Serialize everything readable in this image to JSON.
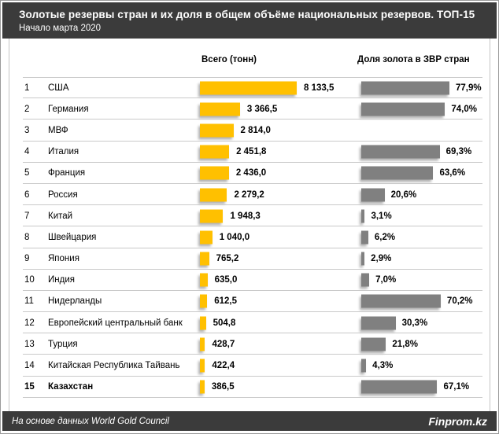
{
  "header": {
    "title": "Золотые резервы стран  и их доля в общем объёме национальных резервов. ТОП-15",
    "subtitle": "Начало  марта  2020"
  },
  "columns": {
    "tonnes": "Всего (тонн)",
    "share": "Доля золота в ЗВР стран"
  },
  "rows": [
    {
      "rank": "1",
      "country": "США",
      "tonnes_label": "8 133,5",
      "tonnes": 8133.5,
      "share_label": "77,9%",
      "share": 77.9,
      "highlight": false
    },
    {
      "rank": "2",
      "country": "Германия",
      "tonnes_label": "3 366,5",
      "tonnes": 3366.5,
      "share_label": "74,0%",
      "share": 74.0,
      "highlight": false
    },
    {
      "rank": "3",
      "country": "МВФ",
      "tonnes_label": "2 814,0",
      "tonnes": 2814.0,
      "share_label": null,
      "share": null,
      "highlight": false
    },
    {
      "rank": "4",
      "country": "Италия",
      "tonnes_label": "2 451,8",
      "tonnes": 2451.8,
      "share_label": "69,3%",
      "share": 69.3,
      "highlight": false
    },
    {
      "rank": "5",
      "country": "Франция",
      "tonnes_label": "2 436,0",
      "tonnes": 2436.0,
      "share_label": "63,6%",
      "share": 63.6,
      "highlight": false
    },
    {
      "rank": "6",
      "country": "Россия",
      "tonnes_label": "2 279,2",
      "tonnes": 2279.2,
      "share_label": "20,6%",
      "share": 20.6,
      "highlight": false
    },
    {
      "rank": "7",
      "country": "Китай",
      "tonnes_label": "1 948,3",
      "tonnes": 1948.3,
      "share_label": "3,1%",
      "share": 3.1,
      "highlight": false
    },
    {
      "rank": "8",
      "country": "Швейцария",
      "tonnes_label": "1 040,0",
      "tonnes": 1040.0,
      "share_label": "6,2%",
      "share": 6.2,
      "highlight": false
    },
    {
      "rank": "9",
      "country": "Япония",
      "tonnes_label": "765,2",
      "tonnes": 765.2,
      "share_label": "2,9%",
      "share": 2.9,
      "highlight": false
    },
    {
      "rank": "10",
      "country": "Индия",
      "tonnes_label": "635,0",
      "tonnes": 635.0,
      "share_label": "7,0%",
      "share": 7.0,
      "highlight": false
    },
    {
      "rank": "11",
      "country": "Нидерланды",
      "tonnes_label": "612,5",
      "tonnes": 612.5,
      "share_label": "70,2%",
      "share": 70.2,
      "highlight": false
    },
    {
      "rank": "12",
      "country": "Европейский центральный банк",
      "tonnes_label": "504,8",
      "tonnes": 504.8,
      "share_label": "30,3%",
      "share": 30.3,
      "highlight": false
    },
    {
      "rank": "13",
      "country": "Турция",
      "tonnes_label": "428,7",
      "tonnes": 428.7,
      "share_label": "21,8%",
      "share": 21.8,
      "highlight": false
    },
    {
      "rank": "14",
      "country": "Китайская Республика Тайвань",
      "tonnes_label": "422,4",
      "tonnes": 422.4,
      "share_label": "4,3%",
      "share": 4.3,
      "highlight": false
    },
    {
      "rank": "15",
      "country": "Казахстан",
      "tonnes_label": "386,5",
      "tonnes": 386.5,
      "share_label": "67,1%",
      "share": 67.1,
      "highlight": true
    }
  ],
  "footer": {
    "source": "На основе данных  World Gold Council",
    "brand": "Finprom.kz"
  },
  "colors": {
    "bar_gold": "#FFC000",
    "bar_gray": "#808080",
    "band_bg": "#3B3B3B",
    "band_text": "#FFFFFF",
    "separator": "#C9C9C9"
  },
  "chart_data": {
    "type": "bar",
    "orientation": "horizontal",
    "title": "Золотые резервы стран и их доля в общем объёме национальных резервов. ТОП-15",
    "subtitle": "Начало марта 2020",
    "categories": [
      "США",
      "Германия",
      "МВФ",
      "Италия",
      "Франция",
      "Россия",
      "Китай",
      "Швейцария",
      "Япония",
      "Индия",
      "Нидерланды",
      "Европейский центральный банк",
      "Турция",
      "Китайская Республика Тайвань",
      "Казахстан"
    ],
    "series": [
      {
        "name": "Всего (тонн)",
        "color": "#FFC000",
        "values": [
          8133.5,
          3366.5,
          2814.0,
          2451.8,
          2436.0,
          2279.2,
          1948.3,
          1040.0,
          765.2,
          635.0,
          612.5,
          504.8,
          428.7,
          422.4,
          386.5
        ]
      },
      {
        "name": "Доля золота в ЗВР стран (%)",
        "color": "#808080",
        "values": [
          77.9,
          74.0,
          null,
          69.3,
          63.6,
          20.6,
          3.1,
          6.2,
          2.9,
          7.0,
          70.2,
          30.3,
          21.8,
          4.3,
          67.1
        ]
      }
    ],
    "xlim_tonnes": [
      0,
      8133.5
    ],
    "xlim_share_pct": [
      0,
      80
    ],
    "grid": false,
    "legend_position": "column-headers",
    "data_labels": true,
    "source": "На основе данных World Gold Council"
  }
}
